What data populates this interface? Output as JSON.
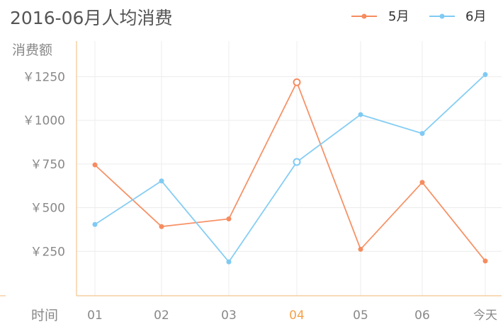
{
  "chart_data": {
    "type": "line",
    "title": "2016-06月人均消费",
    "ylabel": "消费额",
    "xlabel": "时间",
    "categories": [
      "01",
      "02",
      "03",
      "04",
      "05",
      "06",
      "今天"
    ],
    "highlight_category": "04",
    "y_ticks": [
      "￥250",
      "￥500",
      "￥750",
      "￥1000",
      "￥1250"
    ],
    "y_tick_values": [
      250,
      500,
      750,
      1000,
      1250
    ],
    "ylim": [
      0,
      1450
    ],
    "grid": true,
    "legend_position": "top-right",
    "series": [
      {
        "name": "5月",
        "color": "#f58c5f",
        "values": [
          745,
          392,
          436,
          1218,
          262,
          645,
          195
        ]
      },
      {
        "name": "6月",
        "color": "#7fcaf3",
        "values": [
          404,
          653,
          190,
          762,
          1033,
          925,
          1262
        ]
      }
    ]
  }
}
